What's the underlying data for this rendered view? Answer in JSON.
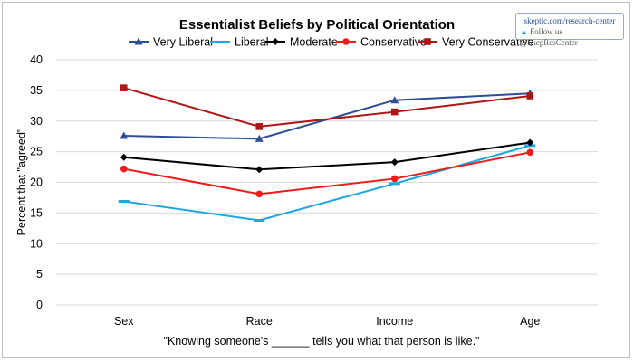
{
  "credit": {
    "site": "skeptic.com/research-center",
    "follow": "Follow us @SkepResCenter"
  },
  "colors": {
    "very_liberal": "#2e4f95",
    "liberal": "#1fa6e0",
    "moderate": "#000000",
    "conservative": "#ee1c1c",
    "very_conservative": "#b01515"
  },
  "chart_data": {
    "type": "line",
    "title": "Essentialist Beliefs by Political Orientation",
    "xlabel": "\"Knowing someone's ______ tells you what that person is like.\"",
    "ylabel": "Percent that \"agreed\"",
    "categories": [
      "Sex",
      "Race",
      "Income",
      "Age"
    ],
    "ylim": [
      0,
      40
    ],
    "yticks": [
      0,
      5,
      10,
      15,
      20,
      25,
      30,
      35,
      40
    ],
    "grid": true,
    "legend_position": "top",
    "series": [
      {
        "key": "very_liberal",
        "name": "Very Liberal",
        "marker": "triangle",
        "values": [
          27.6,
          27.1,
          33.4,
          34.5
        ]
      },
      {
        "key": "liberal",
        "name": "Liberal",
        "marker": "dash",
        "values": [
          16.9,
          13.8,
          19.8,
          26.0
        ]
      },
      {
        "key": "moderate",
        "name": "Moderate",
        "marker": "diamond",
        "values": [
          24.1,
          22.1,
          23.3,
          26.5
        ]
      },
      {
        "key": "conservative",
        "name": "Conservative",
        "marker": "circle",
        "values": [
          22.2,
          18.1,
          20.6,
          24.9
        ]
      },
      {
        "key": "very_conservative",
        "name": "Very Conservative",
        "marker": "square",
        "values": [
          35.4,
          29.1,
          31.5,
          34.1
        ]
      }
    ]
  }
}
